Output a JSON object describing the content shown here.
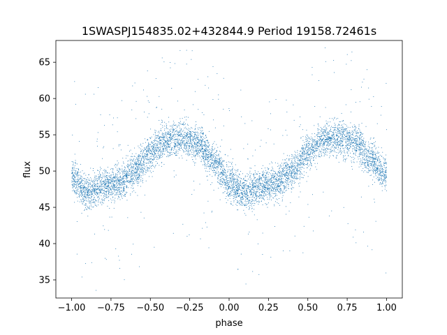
{
  "chart_data": {
    "type": "scatter",
    "title": "1SWASPJ154835.02+432844.9 Period 19158.72461s",
    "xlabel": "phase",
    "ylabel": "flux",
    "xlim": [
      -1.1,
      1.1
    ],
    "ylim": [
      32.5,
      68.0
    ],
    "xticks": [
      -1.0,
      -0.75,
      -0.5,
      -0.25,
      0.0,
      0.25,
      0.5,
      0.75,
      1.0
    ],
    "xtick_labels": [
      "−1.00",
      "−0.75",
      "−0.50",
      "−0.25",
      "0.00",
      "0.25",
      "0.50",
      "0.75",
      "1.00"
    ],
    "yticks": [
      35,
      40,
      45,
      50,
      55,
      60,
      65
    ],
    "ytick_labels": [
      "35",
      "40",
      "45",
      "50",
      "55",
      "60",
      "65"
    ],
    "grid": false,
    "marker_color": "#1f77b4",
    "trend": {
      "phase": [
        -1.0,
        -0.9,
        -0.8,
        -0.7,
        -0.6,
        -0.5,
        -0.4,
        -0.3,
        -0.2,
        -0.1,
        0.0,
        0.1,
        0.2,
        0.3,
        0.4,
        0.5,
        0.6,
        0.7,
        0.8,
        0.9,
        1.0
      ],
      "flux": [
        49.0,
        47.2,
        47.8,
        48.5,
        50.0,
        52.5,
        54.2,
        54.6,
        53.8,
        51.5,
        48.5,
        47.0,
        47.8,
        48.5,
        50.0,
        52.5,
        54.2,
        54.6,
        53.8,
        51.5,
        49.5
      ]
    },
    "scatter_sd": 1.2,
    "n_points": 7000
  }
}
